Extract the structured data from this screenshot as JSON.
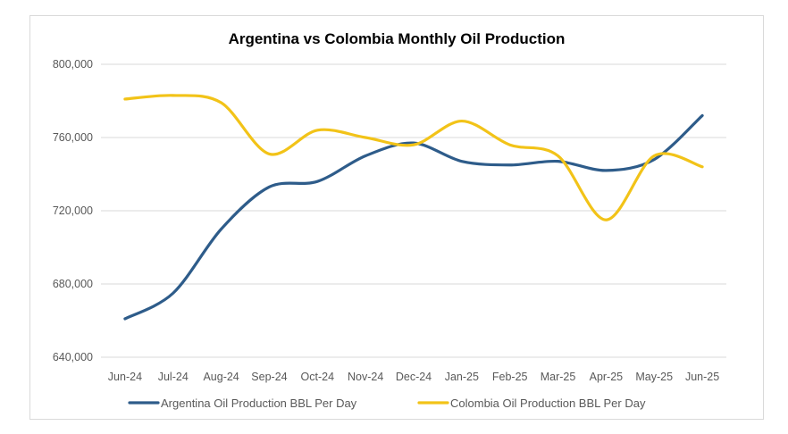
{
  "chart_data": {
    "type": "line",
    "title": "Argentina vs Colombia Monthly Oil Production",
    "categories": [
      "Jun-24",
      "Jul-24",
      "Aug-24",
      "Sep-24",
      "Oct-24",
      "Nov-24",
      "Dec-24",
      "Jan-25",
      "Feb-25",
      "Mar-25",
      "Apr-25",
      "May-25",
      "Jun-25"
    ],
    "y_ticks": [
      "640,000",
      "680,000",
      "720,000",
      "760,000",
      "800,000"
    ],
    "ylim": [
      640000,
      800000
    ],
    "grid": true,
    "legend_position": "bottom",
    "series": [
      {
        "name": "Argentina Oil Production BBL Per Day",
        "color": "#2e5c8a",
        "values": [
          661000,
          675000,
          710000,
          733000,
          736000,
          750000,
          757000,
          747000,
          745000,
          747000,
          742000,
          748000,
          772000
        ]
      },
      {
        "name": "Colombia Oil Production BBL Per Day",
        "color": "#f2c318",
        "values": [
          781000,
          783000,
          779000,
          751000,
          764000,
          760000,
          756000,
          769000,
          756000,
          750000,
          715000,
          750000,
          744000
        ]
      }
    ]
  }
}
